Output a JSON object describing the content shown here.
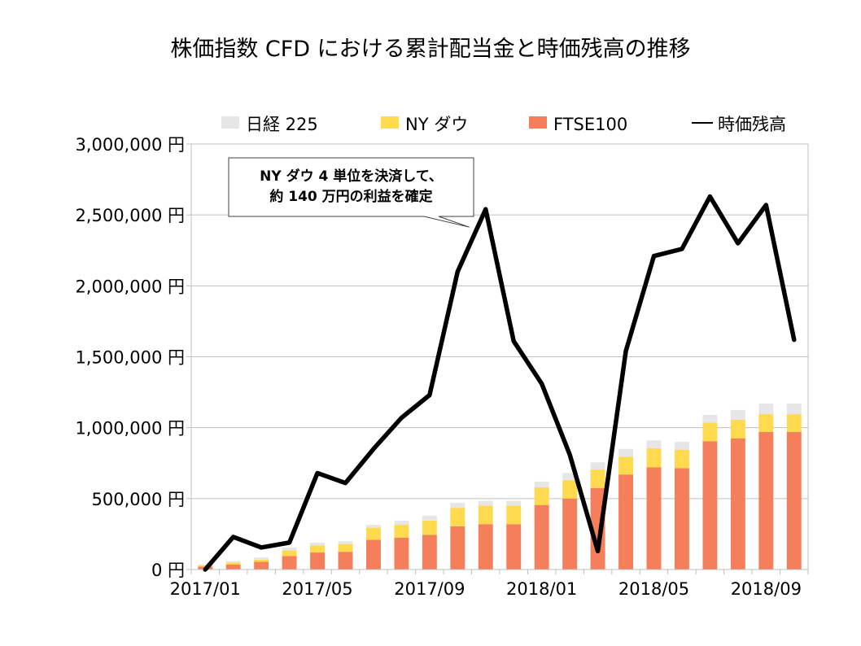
{
  "chart_data": {
    "type": "bar+line",
    "title": "株価指数 CFD における累計配当金と時価残高の推移",
    "x": [
      "2017/01",
      "2017/02",
      "2017/03",
      "2017/04",
      "2017/05",
      "2017/06",
      "2017/07",
      "2017/08",
      "2017/09",
      "2017/10",
      "2017/11",
      "2017/12",
      "2018/01",
      "2018/02",
      "2018/03",
      "2018/04",
      "2018/05",
      "2018/06",
      "2018/07",
      "2018/08",
      "2018/09",
      "2018/10"
    ],
    "x_tick_labels": [
      "2017/01",
      "2017/05",
      "2017/09",
      "2018/01",
      "2018/05",
      "2018/09"
    ],
    "x_tick_indices": [
      0,
      4,
      8,
      12,
      16,
      20
    ],
    "y_tick_values": [
      0,
      500000,
      1000000,
      1500000,
      2000000,
      2500000,
      3000000
    ],
    "y_tick_labels": [
      "0 円",
      "500,000 円",
      "1,000,000 円",
      "1,500,000 円",
      "2,000,000 円",
      "2,500,000 円",
      "3,000,000 円"
    ],
    "ylim": [
      0,
      3000000
    ],
    "grid": true,
    "legend_position": "top",
    "series": [
      {
        "name": "FTSE100",
        "kind": "stacked-bar",
        "color": "#f47f5a",
        "values": [
          20000,
          35000,
          55000,
          95000,
          120000,
          125000,
          210000,
          225000,
          245000,
          305000,
          320000,
          320000,
          455000,
          500000,
          575000,
          670000,
          720000,
          715000,
          905000,
          925000,
          970000,
          970000
        ]
      },
      {
        "name": "NY ダウ",
        "kind": "stacked-bar",
        "color": "#ffd94e",
        "values": [
          10000,
          15000,
          15000,
          40000,
          50000,
          55000,
          85000,
          90000,
          100000,
          130000,
          130000,
          130000,
          125000,
          130000,
          130000,
          125000,
          135000,
          130000,
          130000,
          130000,
          125000,
          125000
        ]
      },
      {
        "name": "日経 225",
        "kind": "stacked-bar",
        "color": "#e6e6e6",
        "values": [
          5000,
          10000,
          15000,
          20000,
          20000,
          20000,
          20000,
          30000,
          35000,
          35000,
          35000,
          35000,
          40000,
          50000,
          50000,
          55000,
          55000,
          55000,
          55000,
          70000,
          75000,
          75000
        ]
      },
      {
        "name": "時価残高",
        "kind": "line",
        "color": "#000000",
        "values": [
          0,
          230000,
          155000,
          190000,
          680000,
          610000,
          850000,
          1070000,
          1230000,
          2100000,
          2540000,
          1610000,
          1310000,
          810000,
          130000,
          1540000,
          2210000,
          2260000,
          2630000,
          2300000,
          2570000,
          1620000
        ]
      }
    ],
    "legend": [
      {
        "name": "日経 225",
        "marker": "box",
        "color": "#e6e6e6"
      },
      {
        "name": "NY ダウ",
        "marker": "box",
        "color": "#ffd94e"
      },
      {
        "name": "FTSE100",
        "marker": "box",
        "color": "#f47f5a"
      },
      {
        "name": "時価残高",
        "marker": "line",
        "color": "#000000"
      }
    ],
    "annotation": {
      "lines": [
        "NY ダウ 4 単位を決済して、",
        "約 140 万円の利益を確定"
      ],
      "points_to": "2017/11"
    }
  }
}
